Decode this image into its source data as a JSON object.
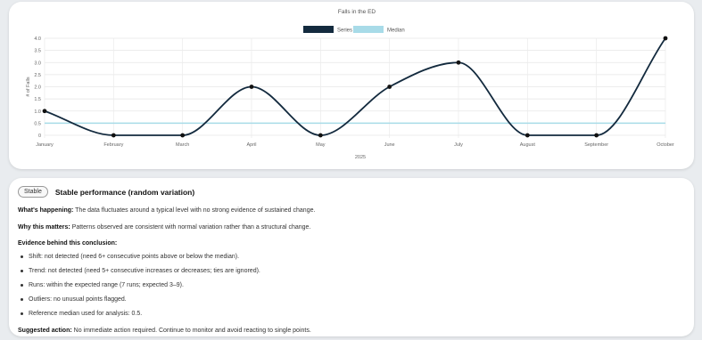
{
  "chart_data": {
    "type": "line",
    "title": "Falls in the ED",
    "xlabel": "2025",
    "ylabel": "# of Falls",
    "categories": [
      "January",
      "February",
      "March",
      "April",
      "May",
      "June",
      "July",
      "August",
      "September",
      "October"
    ],
    "series": [
      {
        "name": "Series",
        "values": [
          1,
          0,
          0,
          2,
          0,
          2,
          3,
          0,
          0,
          4
        ],
        "color": "#132a3e"
      },
      {
        "name": "Median",
        "values": [
          0.5,
          0.5,
          0.5,
          0.5,
          0.5,
          0.5,
          0.5,
          0.5,
          0.5,
          0.5
        ],
        "color": "#a8dbe8"
      }
    ],
    "ylim": [
      0,
      4
    ],
    "yticks": [
      "0",
      "0.5",
      "1.0",
      "1.5",
      "2.0",
      "2.5",
      "3.0",
      "3.5",
      "4.0"
    ],
    "grid": true,
    "legend": "top-center"
  },
  "summary": {
    "badge": "Stable",
    "headline": "Stable performance (random variation)",
    "happening_label": "What's happening:",
    "happening_text": " The data fluctuates around a typical level with no strong evidence of sustained change.",
    "matters_label": "Why this matters:",
    "matters_text": " Patterns observed are consistent with normal variation rather than a structural change.",
    "evidence_title": "Evidence behind this conclusion:",
    "evidence": [
      "Shift: not detected (need 6+ consecutive points above or below the median).",
      "Trend: not detected (need 5+ consecutive increases or decreases; ties are ignored).",
      "Runs: within the expected range (7 runs; expected 3–9).",
      "Outliers: no unusual points flagged.",
      "Reference median used for analysis: 0.5."
    ],
    "action_label": "Suggested action:",
    "action_text": " No immediate action required. Continue to monitor and avoid reacting to single points."
  }
}
